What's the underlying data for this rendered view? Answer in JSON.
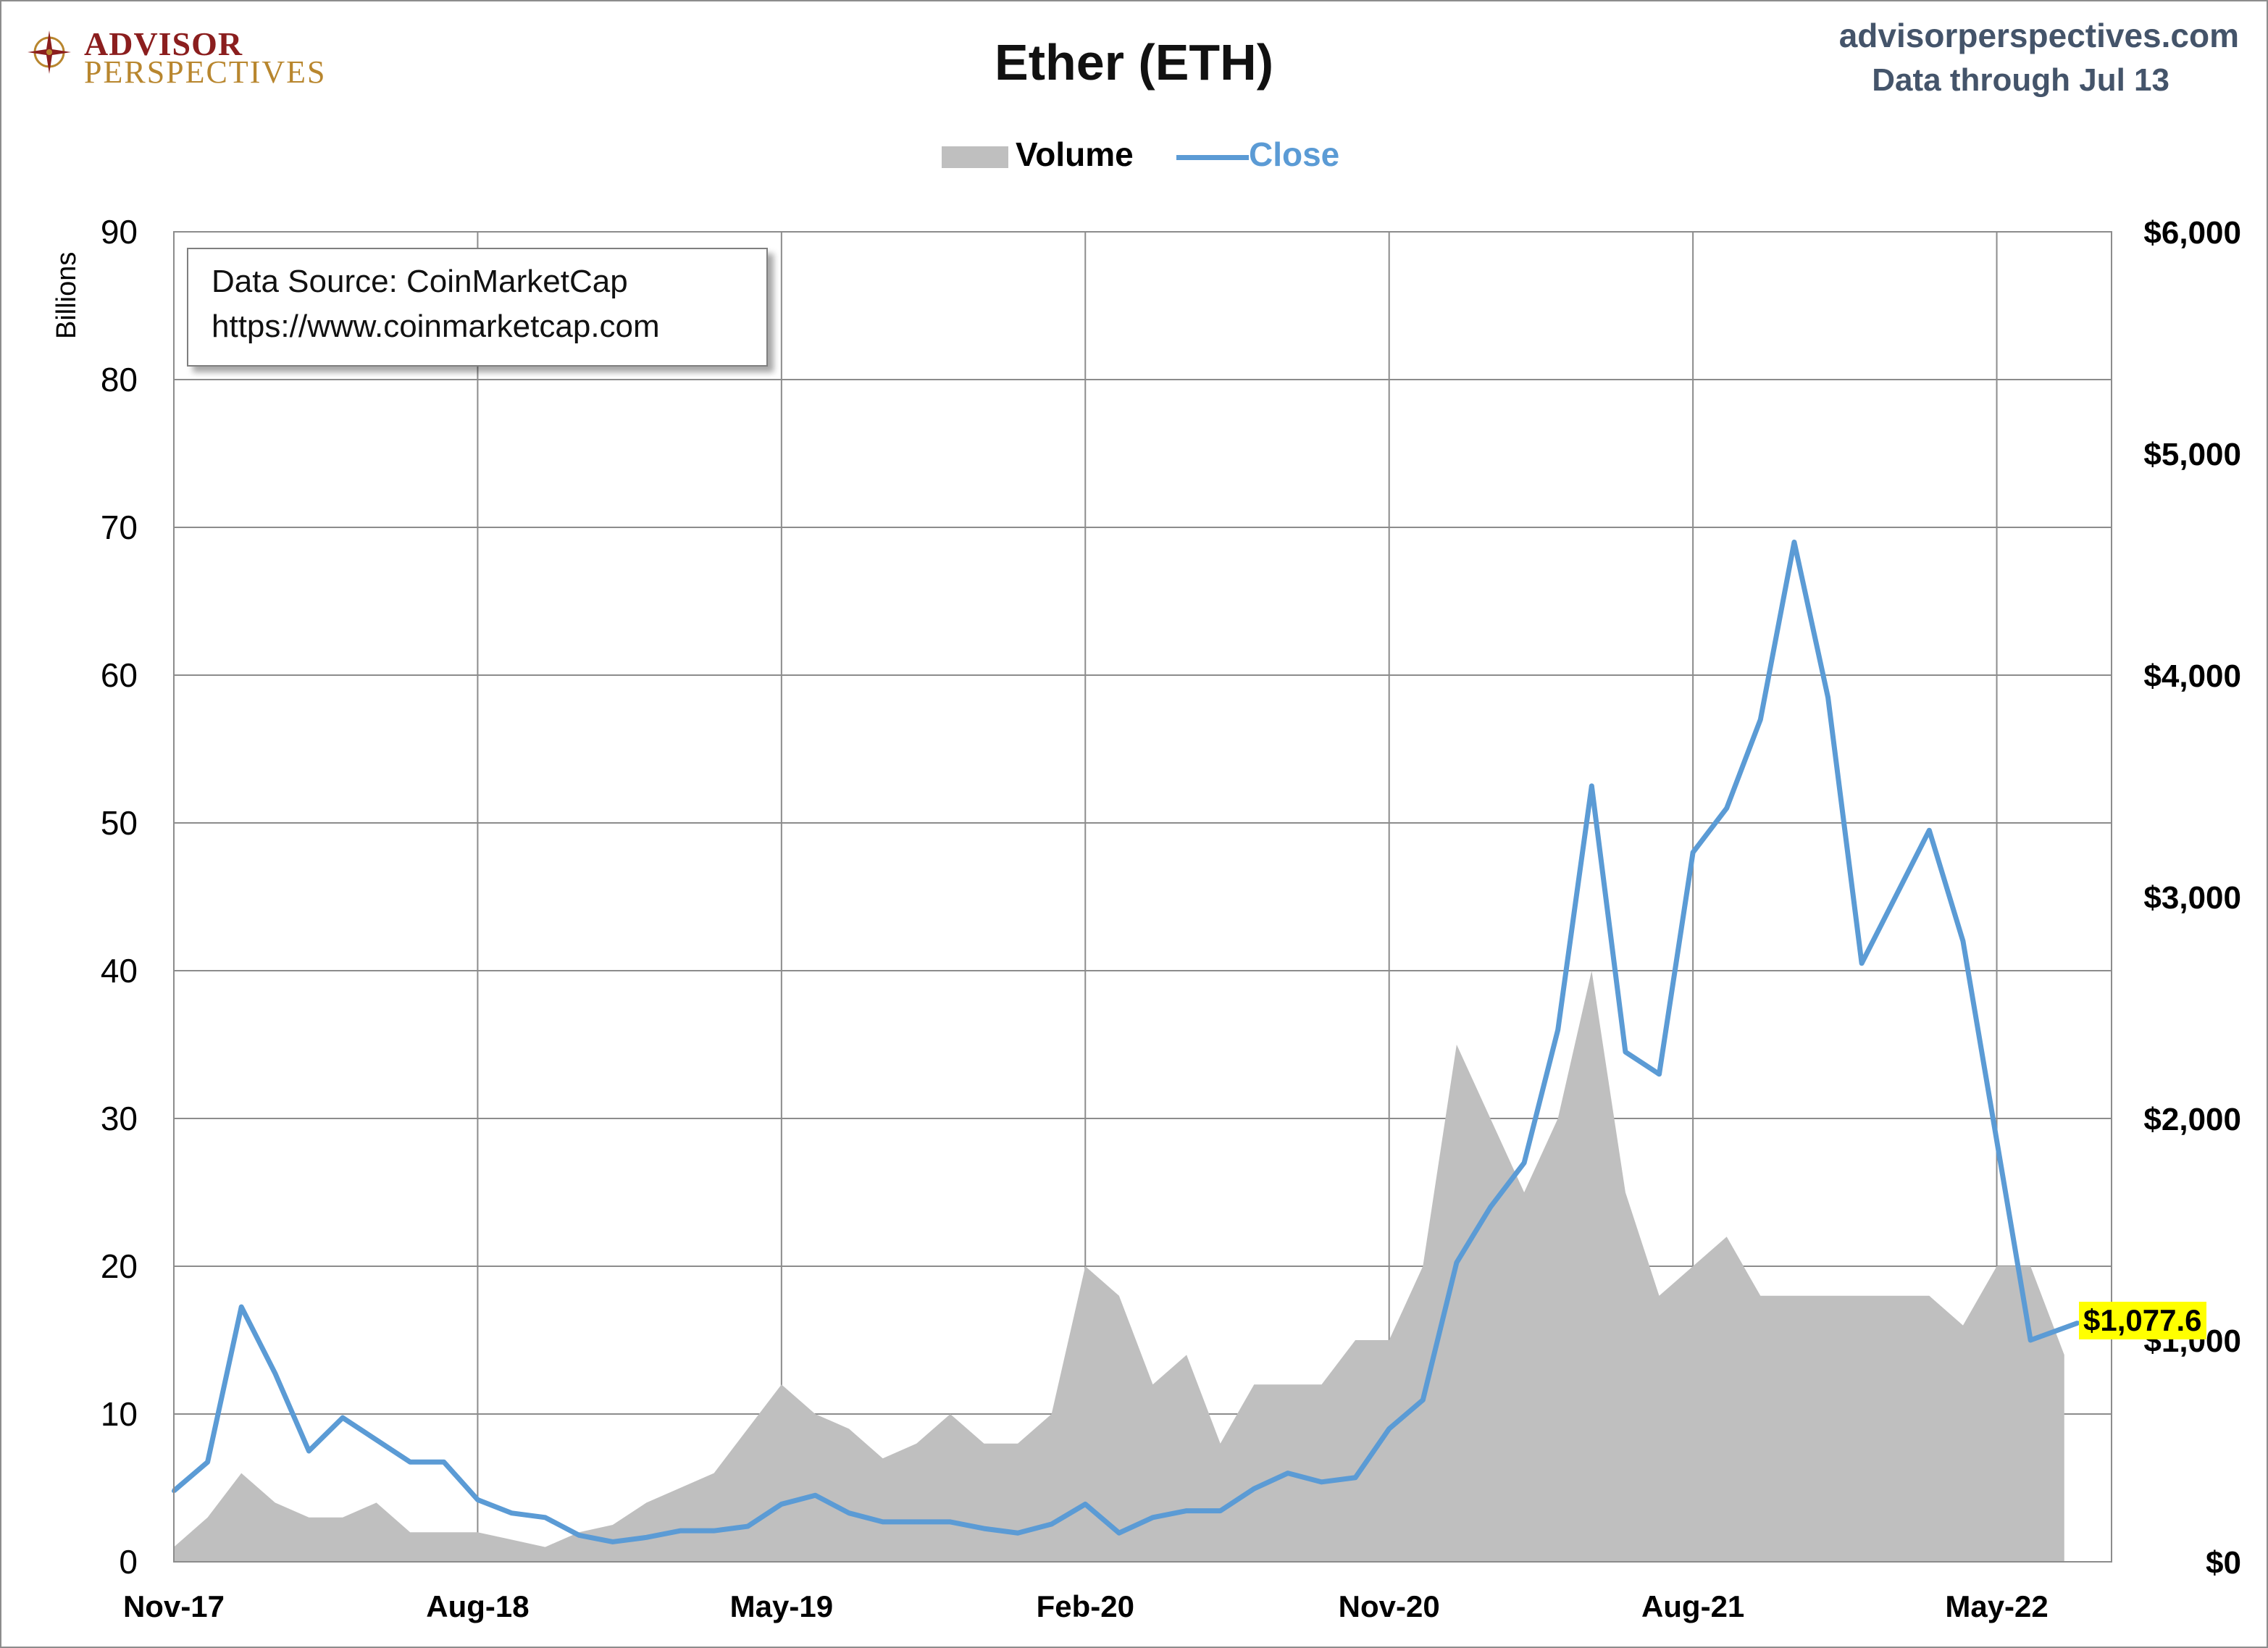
{
  "header": {
    "title": "Ether (ETH)",
    "site": "advisorperspectives.com",
    "data_through": "Data through Jul 13",
    "logo_line1": "ADVISOR",
    "logo_line2": "PERSPECTIVES"
  },
  "legend": {
    "volume_label": "Volume",
    "close_label": "Close"
  },
  "source_box": {
    "line1": "Data Source: CoinMarketCap",
    "line2": "https://www.coinmarketcap.com"
  },
  "last_value_label": "$1,077.6",
  "colors": {
    "volume": "#bfbfbf",
    "close": "#5b9bd5",
    "grid": "#8c8c8c",
    "highlight": "#ffff00"
  },
  "chart_data": {
    "type": "area+line",
    "title": "Ether (ETH)",
    "x_ticks": [
      "Nov-17",
      "Aug-18",
      "May-19",
      "Feb-20",
      "Nov-20",
      "Aug-21",
      "May-22"
    ],
    "x_start": "2017-11",
    "x_end": "2022-07-13",
    "left_axis": {
      "label": "Billions",
      "min": 0,
      "max": 90,
      "ticks": [
        "0",
        "10",
        "20",
        "30",
        "40",
        "50",
        "60",
        "70",
        "80",
        "90"
      ]
    },
    "right_axis": {
      "min": 0,
      "max": 6000,
      "ticks": [
        "$0",
        "$1,000",
        "$2,000",
        "$3,000",
        "$4,000",
        "$5,000",
        "$6,000"
      ]
    },
    "grid": true,
    "legend_position": "top-center",
    "series": [
      {
        "name": "Volume",
        "kind": "area",
        "axis": "left",
        "unit": "Billions",
        "x": [
          "2017-11",
          "2017-12",
          "2018-01",
          "2018-02",
          "2018-03",
          "2018-04",
          "2018-05",
          "2018-06",
          "2018-07",
          "2018-08",
          "2018-09",
          "2018-10",
          "2018-11",
          "2018-12",
          "2019-01",
          "2019-02",
          "2019-03",
          "2019-04",
          "2019-05",
          "2019-06",
          "2019-07",
          "2019-08",
          "2019-09",
          "2019-10",
          "2019-11",
          "2019-12",
          "2020-01",
          "2020-02",
          "2020-03",
          "2020-04",
          "2020-05",
          "2020-06",
          "2020-07",
          "2020-08",
          "2020-09",
          "2020-10",
          "2020-11",
          "2020-12",
          "2021-01",
          "2021-02",
          "2021-03",
          "2021-04",
          "2021-05",
          "2021-06",
          "2021-07",
          "2021-08",
          "2021-09",
          "2021-10",
          "2021-11",
          "2021-12",
          "2022-01",
          "2022-02",
          "2022-03",
          "2022-04",
          "2022-05",
          "2022-06",
          "2022-07"
        ],
        "values": [
          1,
          3,
          6,
          4,
          3,
          3,
          4,
          2,
          2,
          2,
          1.5,
          1,
          2,
          2.5,
          4,
          5,
          6,
          9,
          12,
          10,
          9,
          7,
          8,
          10,
          8,
          8,
          10,
          20,
          18,
          12,
          14,
          8,
          12,
          12,
          12,
          15,
          15,
          20,
          35,
          30,
          25,
          30,
          40,
          25,
          18,
          20,
          22,
          18,
          18,
          18,
          18,
          18,
          18,
          16,
          20,
          20,
          14
        ]
      },
      {
        "name": "Close",
        "kind": "line",
        "axis": "right",
        "unit": "USD",
        "x": [
          "2017-11",
          "2017-12",
          "2018-01",
          "2018-02",
          "2018-03",
          "2018-04",
          "2018-05",
          "2018-06",
          "2018-07",
          "2018-08",
          "2018-09",
          "2018-10",
          "2018-11",
          "2018-12",
          "2019-01",
          "2019-02",
          "2019-03",
          "2019-04",
          "2019-05",
          "2019-06",
          "2019-07",
          "2019-08",
          "2019-09",
          "2019-10",
          "2019-11",
          "2019-12",
          "2020-01",
          "2020-02",
          "2020-03",
          "2020-04",
          "2020-05",
          "2020-06",
          "2020-07",
          "2020-08",
          "2020-09",
          "2020-10",
          "2020-11",
          "2020-12",
          "2021-01",
          "2021-02",
          "2021-03",
          "2021-04",
          "2021-05",
          "2021-06",
          "2021-07",
          "2021-08",
          "2021-09",
          "2021-10",
          "2021-11",
          "2021-12",
          "2022-01",
          "2022-02",
          "2022-03",
          "2022-04",
          "2022-05",
          "2022-06",
          "2022-07-13"
        ],
        "values": [
          320,
          450,
          1150,
          850,
          500,
          650,
          550,
          450,
          450,
          280,
          220,
          200,
          120,
          90,
          110,
          140,
          140,
          160,
          260,
          300,
          220,
          180,
          180,
          180,
          150,
          130,
          170,
          260,
          130,
          200,
          230,
          230,
          330,
          400,
          360,
          380,
          600,
          730,
          1350,
          1600,
          1800,
          2400,
          3500,
          2300,
          2200,
          3200,
          3400,
          3800,
          4600,
          3900,
          2700,
          3000,
          3300,
          2800,
          1900,
          1000,
          1077.6
        ]
      }
    ],
    "last_value": 1077.6
  }
}
